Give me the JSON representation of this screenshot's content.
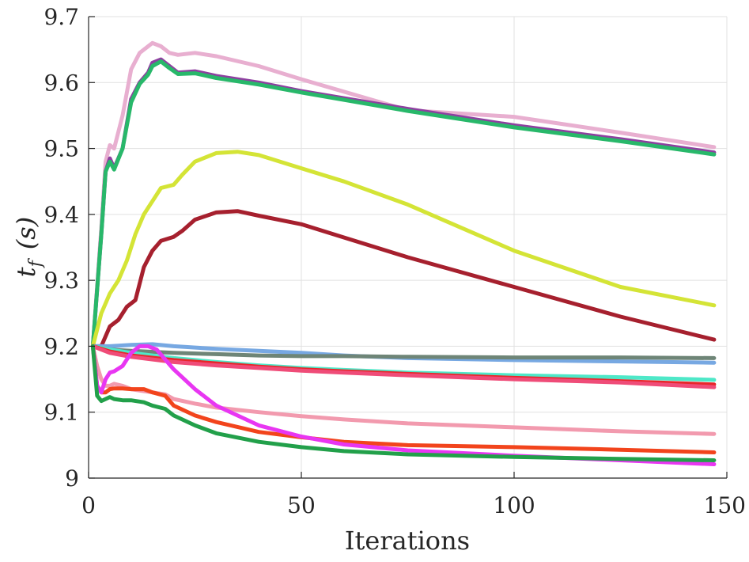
{
  "chart_data": {
    "type": "line",
    "title": "",
    "xlabel": "Iterations",
    "ylabel": "t_f (s)",
    "ylabel_main": "t",
    "ylabel_sub": "f",
    "ylabel_unit": "(s)",
    "xlim": [
      0,
      150
    ],
    "ylim": [
      9.0,
      9.7
    ],
    "xticks": [
      0,
      50,
      100,
      150
    ],
    "xtick_labels": [
      "0",
      "50",
      "100",
      "150"
    ],
    "yticks": [
      9.0,
      9.1,
      9.2,
      9.3,
      9.4,
      9.5,
      9.6,
      9.7
    ],
    "ytick_labels": [
      "9",
      "9.1",
      "9.2",
      "9.3",
      "9.4",
      "9.5",
      "9.6",
      "9.7"
    ],
    "grid": true,
    "series": [
      {
        "name": "pink",
        "color": "#e8afd0",
        "x": [
          1,
          3,
          4,
          5,
          6,
          8,
          10,
          12,
          14,
          15,
          17,
          19,
          21,
          25,
          30,
          40,
          50,
          75,
          100,
          125,
          147
        ],
        "y": [
          9.2,
          9.38,
          9.48,
          9.505,
          9.5,
          9.55,
          9.62,
          9.645,
          9.655,
          9.66,
          9.655,
          9.645,
          9.642,
          9.645,
          9.64,
          9.625,
          9.605,
          9.558,
          9.548,
          9.524,
          9.502
        ]
      },
      {
        "name": "purple",
        "color": "#8e3fa0",
        "x": [
          1,
          3,
          4,
          5,
          6,
          8,
          10,
          12,
          14,
          15,
          17,
          19,
          21,
          25,
          30,
          40,
          50,
          75,
          100,
          125,
          147
        ],
        "y": [
          9.2,
          9.37,
          9.465,
          9.485,
          9.47,
          9.5,
          9.575,
          9.6,
          9.615,
          9.63,
          9.635,
          9.625,
          9.615,
          9.617,
          9.61,
          9.6,
          9.587,
          9.56,
          9.535,
          9.514,
          9.494
        ]
      },
      {
        "name": "green",
        "color": "#28b86a",
        "x": [
          1,
          3,
          4,
          5,
          6,
          8,
          10,
          12,
          14,
          15,
          17,
          19,
          21,
          25,
          30,
          40,
          50,
          75,
          100,
          125,
          147
        ],
        "y": [
          9.2,
          9.37,
          9.465,
          9.48,
          9.468,
          9.5,
          9.57,
          9.598,
          9.612,
          9.625,
          9.632,
          9.622,
          9.613,
          9.614,
          9.607,
          9.597,
          9.585,
          9.557,
          9.532,
          9.511,
          9.491
        ]
      },
      {
        "name": "yellow-green",
        "color": "#d4e436",
        "x": [
          1,
          3,
          5,
          7,
          9,
          11,
          13,
          15,
          17,
          20,
          22,
          25,
          30,
          35,
          40,
          50,
          60,
          75,
          100,
          125,
          147
        ],
        "y": [
          9.2,
          9.25,
          9.28,
          9.3,
          9.33,
          9.37,
          9.4,
          9.42,
          9.44,
          9.445,
          9.46,
          9.48,
          9.493,
          9.495,
          9.49,
          9.47,
          9.45,
          9.415,
          9.345,
          9.29,
          9.262
        ]
      },
      {
        "name": "dark-red",
        "color": "#a6202e",
        "x": [
          1,
          3,
          5,
          7,
          9,
          11,
          13,
          15,
          17,
          20,
          22,
          25,
          30,
          35,
          40,
          50,
          60,
          75,
          100,
          125,
          147
        ],
        "y": [
          9.2,
          9.2,
          9.23,
          9.24,
          9.26,
          9.27,
          9.32,
          9.345,
          9.36,
          9.366,
          9.375,
          9.392,
          9.403,
          9.405,
          9.398,
          9.385,
          9.365,
          9.335,
          9.29,
          9.245,
          9.21
        ]
      },
      {
        "name": "light-blue",
        "color": "#77a8e2",
        "x": [
          1,
          5,
          10,
          15,
          20,
          30,
          40,
          50,
          60,
          75,
          100,
          125,
          147
        ],
        "y": [
          9.2,
          9.2,
          9.202,
          9.203,
          9.2,
          9.196,
          9.193,
          9.19,
          9.186,
          9.182,
          9.179,
          9.177,
          9.175
        ]
      },
      {
        "name": "gray",
        "color": "#6e8577",
        "x": [
          1,
          5,
          10,
          20,
          30,
          40,
          50,
          60,
          75,
          100,
          125,
          147
        ],
        "y": [
          9.2,
          9.195,
          9.193,
          9.19,
          9.188,
          9.186,
          9.185,
          9.185,
          9.184,
          9.183,
          9.183,
          9.182
        ]
      },
      {
        "name": "turquoise",
        "color": "#4ee8c8",
        "x": [
          1,
          5,
          10,
          20,
          30,
          40,
          50,
          60,
          75,
          100,
          125,
          147
        ],
        "y": [
          9.2,
          9.195,
          9.19,
          9.182,
          9.176,
          9.171,
          9.167,
          9.164,
          9.16,
          9.156,
          9.153,
          9.149
        ]
      },
      {
        "name": "red",
        "color": "#e8262a",
        "x": [
          1,
          5,
          10,
          20,
          30,
          40,
          50,
          60,
          75,
          100,
          125,
          147
        ],
        "y": [
          9.2,
          9.192,
          9.186,
          9.179,
          9.174,
          9.169,
          9.165,
          9.162,
          9.158,
          9.152,
          9.147,
          9.142
        ]
      },
      {
        "name": "hot-pink",
        "color": "#ef4c78",
        "x": [
          1,
          5,
          10,
          20,
          30,
          40,
          50,
          60,
          75,
          100,
          125,
          147
        ],
        "y": [
          9.2,
          9.19,
          9.184,
          9.176,
          9.171,
          9.167,
          9.163,
          9.16,
          9.156,
          9.15,
          9.145,
          9.138
        ]
      },
      {
        "name": "light-pink",
        "color": "#f29aae",
        "x": [
          1,
          2,
          3,
          4,
          5,
          6,
          8,
          10,
          13,
          15,
          18,
          20,
          25,
          30,
          40,
          50,
          60,
          75,
          100,
          125,
          147
        ],
        "y": [
          9.2,
          9.17,
          9.15,
          9.14,
          9.14,
          9.143,
          9.14,
          9.135,
          9.132,
          9.13,
          9.127,
          9.12,
          9.113,
          9.107,
          9.1,
          9.094,
          9.089,
          9.083,
          9.077,
          9.071,
          9.067
        ]
      },
      {
        "name": "orange-red",
        "color": "#f2441c",
        "x": [
          1,
          2,
          3,
          4,
          5,
          6,
          8,
          10,
          13,
          15,
          18,
          20,
          25,
          30,
          40,
          50,
          60,
          75,
          100,
          125,
          147
        ],
        "y": [
          9.2,
          9.14,
          9.13,
          9.13,
          9.135,
          9.136,
          9.136,
          9.135,
          9.135,
          9.13,
          9.125,
          9.11,
          9.095,
          9.085,
          9.07,
          9.062,
          9.055,
          9.05,
          9.047,
          9.043,
          9.039
        ]
      },
      {
        "name": "magenta",
        "color": "#e836f2",
        "x": [
          1,
          2,
          3,
          4,
          5,
          6,
          8,
          10,
          12,
          14,
          16,
          18,
          20,
          25,
          30,
          40,
          50,
          60,
          75,
          100,
          125,
          147
        ],
        "y": [
          9.2,
          9.14,
          9.13,
          9.15,
          9.16,
          9.162,
          9.17,
          9.19,
          9.2,
          9.2,
          9.195,
          9.18,
          9.165,
          9.135,
          9.11,
          9.08,
          9.063,
          9.051,
          9.042,
          9.034,
          9.027,
          9.021
        ]
      },
      {
        "name": "dark-green",
        "color": "#22a04a",
        "x": [
          1,
          2,
          3,
          4,
          5,
          6,
          8,
          10,
          13,
          15,
          18,
          20,
          25,
          30,
          40,
          50,
          60,
          75,
          100,
          125,
          147
        ],
        "y": [
          9.2,
          9.125,
          9.117,
          9.12,
          9.123,
          9.12,
          9.118,
          9.118,
          9.115,
          9.11,
          9.105,
          9.095,
          9.08,
          9.068,
          9.055,
          9.047,
          9.041,
          9.036,
          9.032,
          9.029,
          9.027
        ]
      }
    ]
  }
}
